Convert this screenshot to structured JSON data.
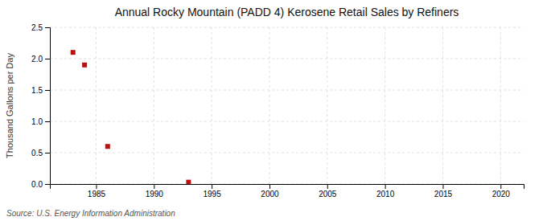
{
  "chart_data": {
    "type": "scatter",
    "title": "Annual Rocky Mountain (PADD 4) Kerosene Retail Sales by Refiners",
    "y_label": "Thousand Gallons per Day",
    "source": "Source: U.S. Energy Information Administration",
    "x": [
      1983,
      1984,
      1986,
      1993
    ],
    "values": [
      2.1,
      1.9,
      0.6,
      0.03
    ],
    "color": "#bb1111",
    "marker": "square",
    "xlim": [
      1981,
      2022
    ],
    "ylim": [
      0,
      2.5
    ],
    "xticks": [
      1985,
      1990,
      1995,
      2000,
      2005,
      2010,
      2015,
      2020
    ],
    "yticks": [
      {
        "value": 0,
        "label": "0.0"
      },
      0.5,
      {
        "value": 1,
        "label": "1.0"
      },
      1.5,
      {
        "value": 2,
        "label": "2.0"
      },
      2.5
    ],
    "grid": true
  }
}
